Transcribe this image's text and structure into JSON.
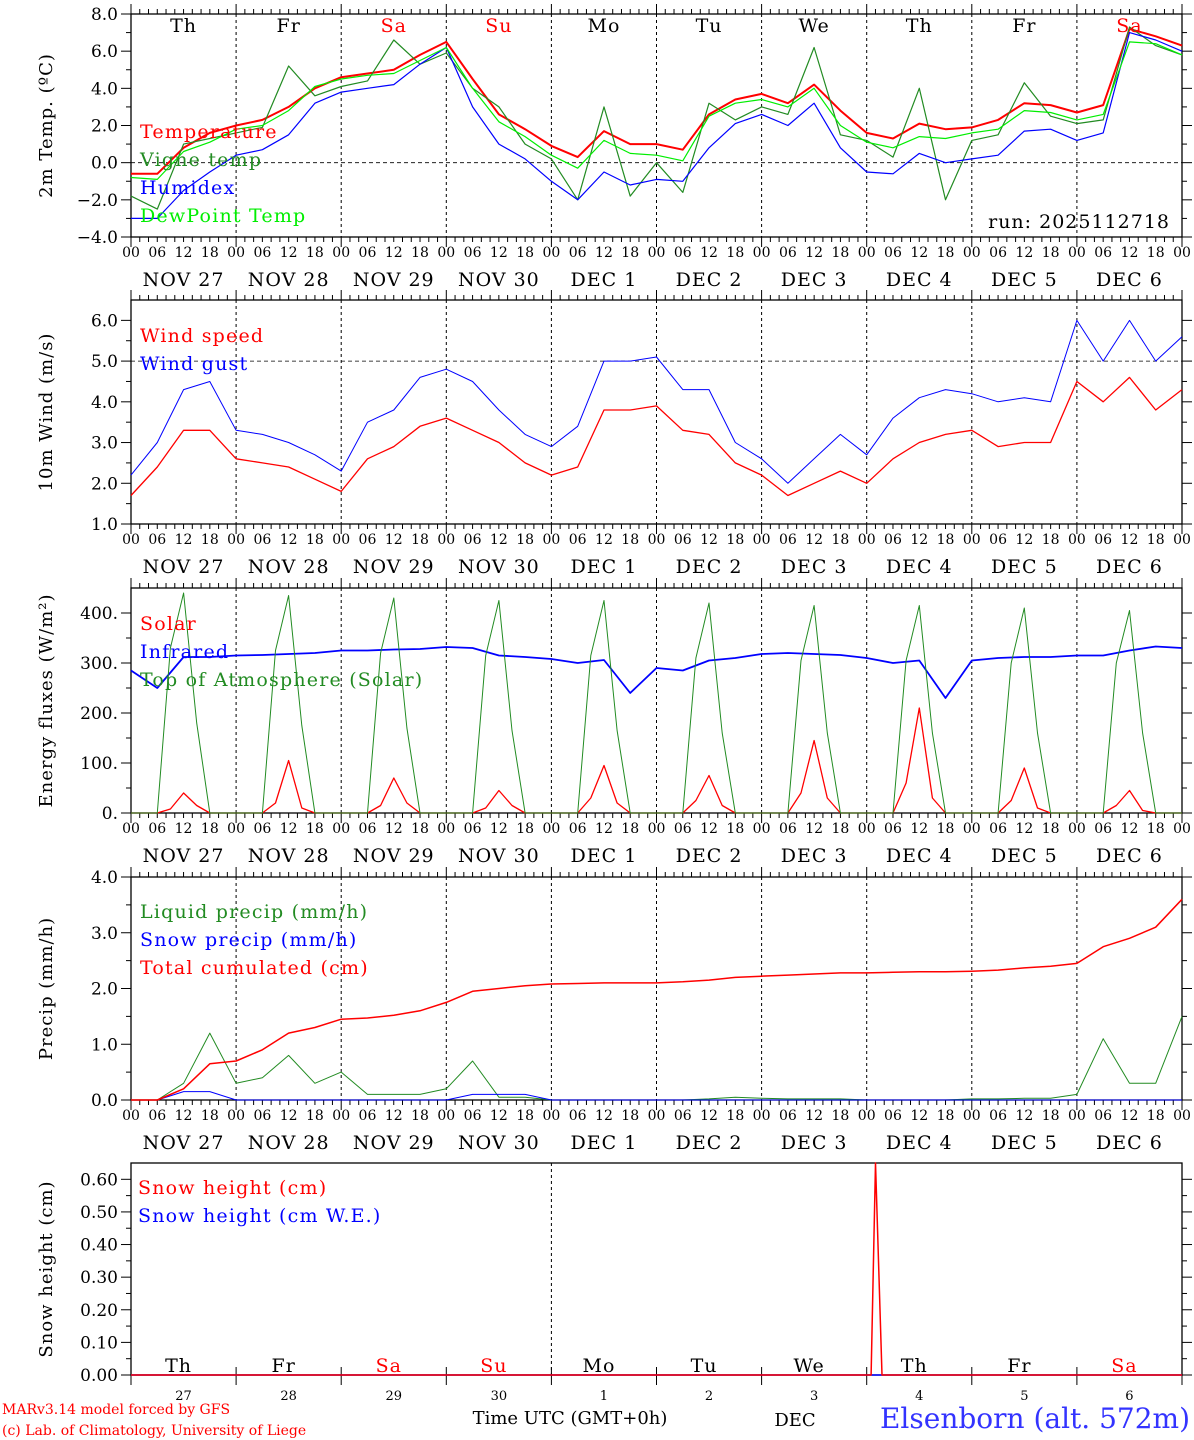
{
  "days": [
    "27",
    "28",
    "29",
    "30",
    "1",
    "2",
    "3",
    "4",
    "5",
    "6"
  ],
  "day_names": [
    "Th",
    "Fr",
    "Sa",
    "Su",
    "Mo",
    "Tu",
    "We",
    "Th",
    "Fr",
    "Sa"
  ],
  "weekend_flags": [
    false,
    false,
    true,
    true,
    false,
    false,
    false,
    false,
    false,
    true
  ],
  "date_labels": [
    "NOV 27",
    "NOV 28",
    "NOV 29",
    "NOV 30",
    "DEC  1",
    "DEC  2",
    "DEC  3",
    "DEC  4",
    "DEC  5",
    "DEC  6"
  ],
  "hour_labels": [
    "00",
    "06",
    "12",
    "18"
  ],
  "run_label": "run: 2025112718",
  "footer": {
    "model": "MARv3.14 model forced by GFS",
    "credit": "(c) Lab. of Climatology, University of Liege",
    "time_axis": "Time UTC (GMT+0h)",
    "month_label": "DEC",
    "station": "Elsenborn (alt. 572m)"
  },
  "colors": {
    "red": "#ff0000",
    "darkgreen": "#228b22",
    "blue": "#0000ff",
    "lightgreen": "#00ee00",
    "axis": "#000000"
  },
  "chart_data": [
    {
      "type": "line",
      "ylabel": "2m Temp. (ºC)",
      "xlabel": "",
      "x_step_hours": 6,
      "ylim": [
        -4,
        8
      ],
      "ref_line": 0,
      "yticks": [
        {
          "v": 8,
          "label": "8.0"
        },
        {
          "v": 6,
          "label": "6.0"
        },
        {
          "v": 4,
          "label": "4.0"
        },
        {
          "v": 2,
          "label": "2.0"
        },
        {
          "v": 0,
          "label": "0.0"
        },
        {
          "v": -2,
          "label": "−2.0"
        },
        {
          "v": -4,
          "label": "−4.0"
        }
      ],
      "series": [
        {
          "name": "Temperature",
          "color": "#ff0000",
          "width": 2,
          "values": [
            -0.6,
            -0.6,
            0.8,
            1.6,
            2.0,
            2.3,
            3.0,
            4.0,
            4.6,
            4.8,
            5.0,
            5.8,
            6.5,
            4.5,
            2.6,
            1.8,
            0.9,
            0.3,
            1.7,
            1.0,
            1.0,
            0.7,
            2.6,
            3.4,
            3.7,
            3.2,
            4.2,
            2.8,
            1.6,
            1.3,
            2.1,
            1.8,
            1.9,
            2.3,
            3.2,
            3.1,
            2.7,
            3.1,
            7.2,
            6.8,
            6.3
          ]
        },
        {
          "name": "Vigne temp",
          "color": "#228b22",
          "width": 1.2,
          "values": [
            -1.8,
            -2.5,
            1.0,
            1.3,
            1.6,
            1.9,
            5.2,
            3.6,
            4.1,
            4.4,
            6.6,
            5.3,
            5.9,
            4.0,
            3.0,
            1.0,
            0.2,
            -2.0,
            3.0,
            -1.8,
            0.0,
            -1.6,
            3.2,
            2.3,
            3.0,
            2.6,
            6.2,
            1.5,
            1.2,
            0.3,
            4.0,
            -2.0,
            1.2,
            1.5,
            4.3,
            2.5,
            2.1,
            2.3,
            7.3,
            6.3,
            5.8
          ]
        },
        {
          "name": "Humidex",
          "color": "#0000ff",
          "width": 1.2,
          "values": [
            -3.0,
            -3.0,
            -1.5,
            -0.5,
            0.4,
            0.7,
            1.5,
            3.2,
            3.8,
            4.0,
            4.2,
            5.3,
            6.2,
            3.0,
            1.0,
            0.2,
            -1.0,
            -2.0,
            -0.5,
            -1.2,
            -0.9,
            -1.0,
            0.8,
            2.1,
            2.6,
            2.0,
            3.2,
            0.8,
            -0.5,
            -0.6,
            0.5,
            0.0,
            0.2,
            0.4,
            1.7,
            1.8,
            1.2,
            1.6,
            7.0,
            6.6,
            6.0
          ]
        },
        {
          "name": "DewPoint Temp",
          "color": "#00ee00",
          "width": 1.2,
          "values": [
            -0.8,
            -0.9,
            0.6,
            1.1,
            1.8,
            2.0,
            2.8,
            4.1,
            4.5,
            4.7,
            4.8,
            5.5,
            6.2,
            4.0,
            2.2,
            1.4,
            0.4,
            -0.3,
            1.2,
            0.5,
            0.4,
            0.1,
            2.5,
            3.2,
            3.4,
            3.0,
            4.0,
            2.0,
            1.1,
            0.8,
            1.4,
            1.3,
            1.6,
            1.8,
            2.8,
            2.7,
            2.3,
            2.6,
            6.5,
            6.4,
            5.8
          ]
        }
      ]
    },
    {
      "type": "line",
      "ylabel": "10m Wind (m/s)",
      "x_step_hours": 6,
      "ylim": [
        1,
        6.5
      ],
      "ref_line": 5,
      "yticks": [
        {
          "v": 6,
          "label": "6.0"
        },
        {
          "v": 5,
          "label": "5.0"
        },
        {
          "v": 4,
          "label": "4.0"
        },
        {
          "v": 3,
          "label": "3.0"
        },
        {
          "v": 2,
          "label": "2.0"
        },
        {
          "v": 1,
          "label": "1.0"
        }
      ],
      "series": [
        {
          "name": "Wind speed",
          "color": "#ff0000",
          "width": 1.3,
          "values": [
            1.7,
            2.4,
            3.3,
            3.3,
            2.6,
            2.5,
            2.4,
            2.1,
            1.8,
            2.6,
            2.9,
            3.4,
            3.6,
            3.3,
            3.0,
            2.5,
            2.2,
            2.4,
            3.8,
            3.8,
            3.9,
            3.3,
            3.2,
            2.5,
            2.2,
            1.7,
            2.0,
            2.3,
            2.0,
            2.6,
            3.0,
            3.2,
            3.3,
            2.9,
            3.0,
            3.0,
            4.5,
            4.0,
            4.6,
            3.8,
            4.3
          ]
        },
        {
          "name": "Wind gust",
          "color": "#0000ff",
          "width": 1,
          "values": [
            2.2,
            3.0,
            4.3,
            4.5,
            3.3,
            3.2,
            3.0,
            2.7,
            2.3,
            3.5,
            3.8,
            4.6,
            4.8,
            4.5,
            3.8,
            3.2,
            2.9,
            3.4,
            5.0,
            5.0,
            5.1,
            4.3,
            4.3,
            3.0,
            2.6,
            2.0,
            2.6,
            3.2,
            2.7,
            3.6,
            4.1,
            4.3,
            4.2,
            4.0,
            4.1,
            4.0,
            6.0,
            5.0,
            6.0,
            5.0,
            5.6
          ]
        }
      ]
    },
    {
      "type": "line",
      "ylabel": "Energy fluxes (W/m²)",
      "x_step_hours": 3,
      "ylim": [
        0,
        450
      ],
      "yticks": [
        {
          "v": 400,
          "label": "400."
        },
        {
          "v": 300,
          "label": "300."
        },
        {
          "v": 200,
          "label": "200."
        },
        {
          "v": 100,
          "label": "100."
        },
        {
          "v": 0,
          "label": "0."
        }
      ],
      "series": [
        {
          "name": "Solar",
          "color": "#ff0000",
          "width": 1.3,
          "values": [
            0,
            0,
            0,
            8,
            40,
            15,
            0,
            0,
            0,
            0,
            0,
            20,
            105,
            10,
            0,
            0,
            0,
            0,
            0,
            15,
            70,
            20,
            0,
            0,
            0,
            0,
            0,
            10,
            45,
            15,
            0,
            0,
            0,
            0,
            0,
            30,
            95,
            20,
            0,
            0,
            0,
            0,
            0,
            25,
            75,
            15,
            0,
            0,
            0,
            0,
            0,
            40,
            145,
            30,
            0,
            0,
            0,
            0,
            0,
            60,
            210,
            30,
            0,
            0,
            0,
            0,
            0,
            25,
            90,
            10,
            0,
            0,
            0,
            0,
            0,
            15,
            45,
            5,
            0,
            0,
            0
          ]
        },
        {
          "name": "Infrared",
          "color": "#0000ff",
          "width": 1.8,
          "step_hours": 6,
          "values": [
            285,
            250,
            312,
            312,
            315,
            316,
            318,
            320,
            325,
            325,
            327,
            328,
            332,
            330,
            315,
            312,
            308,
            300,
            306,
            240,
            290,
            285,
            305,
            310,
            318,
            320,
            318,
            316,
            310,
            300,
            305,
            230,
            305,
            310,
            312,
            312,
            315,
            315,
            325,
            333,
            330
          ]
        },
        {
          "name": "Top of Atmosphere (Solar)",
          "color": "#228b22",
          "width": 1,
          "values": [
            0,
            0,
            0,
            330,
            440,
            180,
            0,
            0,
            0,
            0,
            0,
            325,
            435,
            175,
            0,
            0,
            0,
            0,
            0,
            320,
            430,
            170,
            0,
            0,
            0,
            0,
            0,
            315,
            425,
            165,
            0,
            0,
            0,
            0,
            0,
            315,
            425,
            165,
            0,
            0,
            0,
            0,
            0,
            310,
            420,
            160,
            0,
            0,
            0,
            0,
            0,
            305,
            415,
            160,
            0,
            0,
            0,
            0,
            0,
            305,
            415,
            160,
            0,
            0,
            0,
            0,
            0,
            300,
            410,
            160,
            0,
            0,
            0,
            0,
            0,
            300,
            405,
            160,
            0,
            0,
            0
          ]
        }
      ]
    },
    {
      "type": "line",
      "ylabel": "Precip (mm/h)",
      "x_step_hours": 6,
      "ylim": [
        0,
        4
      ],
      "yticks": [
        {
          "v": 4,
          "label": "4.0"
        },
        {
          "v": 3,
          "label": "3.0"
        },
        {
          "v": 2,
          "label": "2.0"
        },
        {
          "v": 1,
          "label": "1.0"
        },
        {
          "v": 0,
          "label": "0.0"
        }
      ],
      "series": [
        {
          "name": "Liquid precip (mm/h)",
          "color": "#228b22",
          "width": 1,
          "values": [
            0,
            0,
            0.3,
            1.2,
            0.3,
            0.4,
            0.8,
            0.3,
            0.5,
            0.1,
            0.1,
            0.1,
            0.2,
            0.7,
            0.05,
            0.05,
            0,
            0,
            0,
            0,
            0,
            0,
            0.02,
            0.05,
            0.03,
            0.02,
            0.02,
            0.02,
            0,
            0,
            0,
            0,
            0.02,
            0.02,
            0.03,
            0.03,
            0.1,
            1.1,
            0.3,
            0.3,
            1.5
          ]
        },
        {
          "name": "Snow precip (mm/h)",
          "color": "#0000ff",
          "width": 1,
          "values": [
            0,
            0,
            0.15,
            0.15,
            0,
            0,
            0,
            0,
            0,
            0,
            0,
            0,
            0,
            0.1,
            0.1,
            0.1,
            0,
            0,
            0,
            0,
            0,
            0,
            0,
            0,
            0,
            0,
            0,
            0,
            0,
            0,
            0,
            0,
            0,
            0,
            0,
            0,
            0,
            0,
            0,
            0,
            0
          ]
        },
        {
          "name": "Total cumulated (cm)",
          "color": "#ff0000",
          "width": 1.5,
          "values": [
            0,
            0,
            0.2,
            0.65,
            0.7,
            0.9,
            1.2,
            1.3,
            1.45,
            1.47,
            1.52,
            1.6,
            1.75,
            1.95,
            2.0,
            2.05,
            2.08,
            2.09,
            2.1,
            2.1,
            2.1,
            2.12,
            2.15,
            2.2,
            2.22,
            2.24,
            2.26,
            2.28,
            2.28,
            2.29,
            2.3,
            2.3,
            2.31,
            2.33,
            2.37,
            2.4,
            2.45,
            2.75,
            2.9,
            3.1,
            3.6
          ]
        }
      ]
    },
    {
      "type": "line",
      "ylabel": "Snow height (cm)",
      "ylim": [
        0,
        0.65
      ],
      "yticks": [
        {
          "v": 0.6,
          "label": "0.60"
        },
        {
          "v": 0.5,
          "label": "0.50"
        },
        {
          "v": 0.4,
          "label": "0.40"
        },
        {
          "v": 0.3,
          "label": "0.30"
        },
        {
          "v": 0.2,
          "label": "0.20"
        },
        {
          "v": 0.1,
          "label": "0.10"
        },
        {
          "v": 0,
          "label": "0.00"
        }
      ],
      "series": [
        {
          "name": "Snow height (cm W.E.)",
          "color": "#0000ff",
          "width": 1.5,
          "points": [
            [
              0,
              0
            ],
            [
              240,
              0
            ]
          ]
        },
        {
          "name": "Snow height (cm)",
          "color": "#ff0000",
          "width": 1.5,
          "points": [
            [
              0,
              0
            ],
            [
              169,
              0
            ],
            [
              170,
              0.65
            ],
            [
              171.5,
              0
            ],
            [
              240,
              0
            ]
          ]
        }
      ]
    }
  ]
}
